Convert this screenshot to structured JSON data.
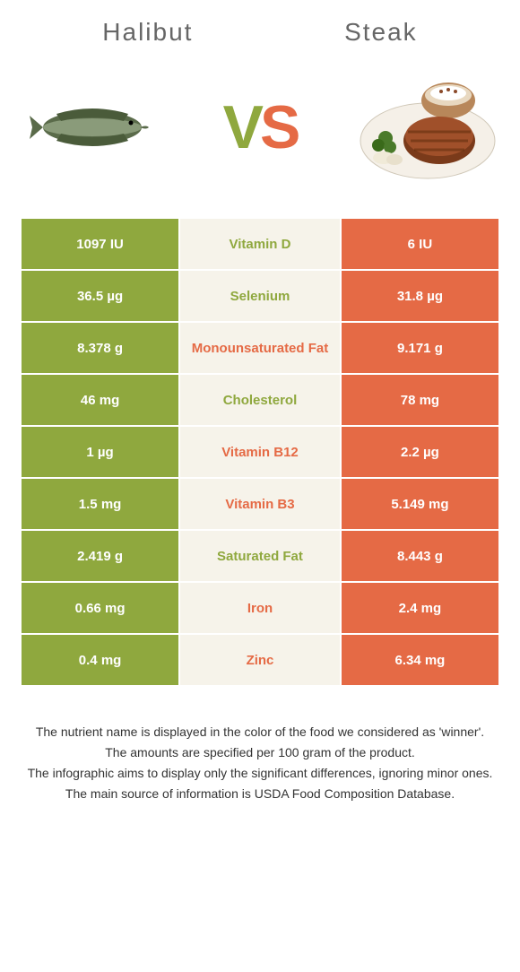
{
  "header": {
    "left": "Halibut",
    "right": "Steak"
  },
  "vs": {
    "v": "V",
    "s": "S"
  },
  "colors": {
    "green": "#8fa83e",
    "orange": "#e56a45",
    "mid_bg": "#f6f3ea",
    "text": "#333333"
  },
  "rows": [
    {
      "left": "1097 IU",
      "mid": "Vitamin D",
      "right": "6 IU",
      "winner": "green"
    },
    {
      "left": "36.5 µg",
      "mid": "Selenium",
      "right": "31.8 µg",
      "winner": "green"
    },
    {
      "left": "8.378 g",
      "mid": "Monounsaturated Fat",
      "right": "9.171 g",
      "winner": "orange"
    },
    {
      "left": "46 mg",
      "mid": "Cholesterol",
      "right": "78 mg",
      "winner": "green"
    },
    {
      "left": "1 µg",
      "mid": "Vitamin B12",
      "right": "2.2 µg",
      "winner": "orange"
    },
    {
      "left": "1.5 mg",
      "mid": "Vitamin B3",
      "right": "5.149 mg",
      "winner": "orange"
    },
    {
      "left": "2.419 g",
      "mid": "Saturated Fat",
      "right": "8.443 g",
      "winner": "green"
    },
    {
      "left": "0.66 mg",
      "mid": "Iron",
      "right": "2.4 mg",
      "winner": "orange"
    },
    {
      "left": "0.4 mg",
      "mid": "Zinc",
      "right": "6.34 mg",
      "winner": "orange"
    }
  ],
  "footnotes": [
    "The nutrient name is displayed in the color of the food we considered as 'winner'.",
    "The amounts are specified per 100 gram of the product.",
    "The infographic aims to display only the significant differences, ignoring minor ones.",
    "The main source of information is USDA Food Composition Database."
  ]
}
